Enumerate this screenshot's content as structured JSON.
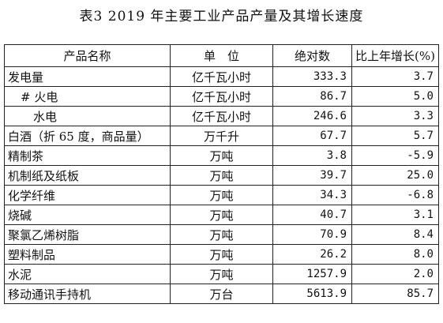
{
  "title": "表3   2019 年主要工业产品产量及其增长速度",
  "table": {
    "headers": [
      "产品名称",
      "单　位",
      "绝对数",
      "比上年增长(%)"
    ],
    "rows": [
      {
        "name": "发电量",
        "unit": "亿千瓦小时",
        "value": "333.3",
        "growth": "3.7",
        "indent": 0
      },
      {
        "name": "# 火电",
        "unit": "亿千瓦小时",
        "value": "86.7",
        "growth": "5.0",
        "indent": 1
      },
      {
        "name": "水电",
        "unit": "亿千瓦小时",
        "value": "246.6",
        "growth": "3.3",
        "indent": 2
      },
      {
        "name": "白酒（折 65 度，商品量）",
        "unit": "万千升",
        "value": "67.7",
        "growth": "5.7",
        "indent": 0
      },
      {
        "name": "精制茶",
        "unit": "万吨",
        "value": "3.8",
        "growth": "-5.9",
        "indent": 0
      },
      {
        "name": "机制纸及纸板",
        "unit": "万吨",
        "value": "39.7",
        "growth": "25.0",
        "indent": 0
      },
      {
        "name": "化学纤维",
        "unit": "万吨",
        "value": "34.3",
        "growth": "-6.8",
        "indent": 0
      },
      {
        "name": "烧碱",
        "unit": "万吨",
        "value": "40.7",
        "growth": "3.1",
        "indent": 0
      },
      {
        "name": "聚氯乙烯树脂",
        "unit": "万吨",
        "value": "70.9",
        "growth": "8.4",
        "indent": 0
      },
      {
        "name": "塑料制品",
        "unit": "万吨",
        "value": "26.2",
        "growth": "8.0",
        "indent": 0
      },
      {
        "name": "水泥",
        "unit": "万吨",
        "value": "1257.9",
        "growth": "2.0",
        "indent": 0
      },
      {
        "name": "移动通讯手持机",
        "unit": "万台",
        "value": "5613.9",
        "growth": "85.7",
        "indent": 0
      }
    ]
  }
}
